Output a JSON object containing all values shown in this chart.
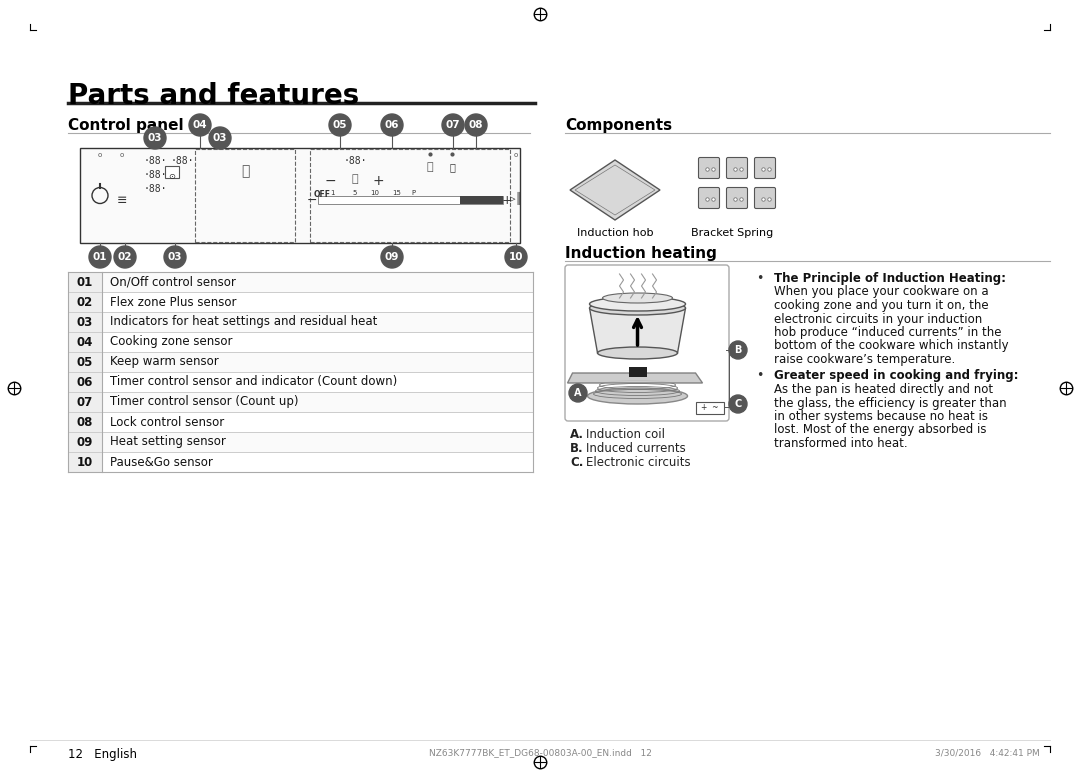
{
  "title": "Parts and features",
  "bg_color": "#ffffff",
  "section1_title": "Control panel",
  "section2_title": "Components",
  "section3_title": "Induction heating",
  "table_rows": [
    [
      "01",
      "On/Off control sensor"
    ],
    [
      "02",
      "Flex zone Plus sensor"
    ],
    [
      "03",
      "Indicators for heat settings and residual heat"
    ],
    [
      "04",
      "Cooking zone sensor"
    ],
    [
      "05",
      "Keep warm sensor"
    ],
    [
      "06",
      "Timer control sensor and indicator (Count down)"
    ],
    [
      "07",
      "Timer control sensor (Count up)"
    ],
    [
      "08",
      "Lock control sensor"
    ],
    [
      "09",
      "Heat setting sensor"
    ],
    [
      "10",
      "Pause&Go sensor"
    ]
  ],
  "induction_text1_bold": "The Principle of Induction Heating",
  "induction_text1_lines": [
    "When you place your cookware on a",
    "cooking zone and you turn it on, the",
    "electronic circuits in your induction",
    "hob produce “induced currents” in the",
    "bottom of the cookware which instantly",
    "raise cookware’s temperature."
  ],
  "induction_text2_bold": "Greater speed in cooking and frying",
  "induction_text2_lines": [
    "As the pan is heated directly and not",
    "the glass, the efficiency is greater than",
    "in other systems because no heat is",
    "lost. Most of the energy absorbed is",
    "transformed into heat."
  ],
  "abc_labels": [
    [
      "A.",
      "Induction coil"
    ],
    [
      "B.",
      "Induced currents"
    ],
    [
      "C.",
      "Electronic circuits"
    ]
  ],
  "induction_hob_label": "Induction hob",
  "bracket_spring_label": "Bracket Spring",
  "footer_left": "12   English",
  "footer_filename": "NZ63K7777BK_ET_DG68-00803A-00_EN.indd   12",
  "footer_date": "3/30/2016   4:42:41 PM"
}
